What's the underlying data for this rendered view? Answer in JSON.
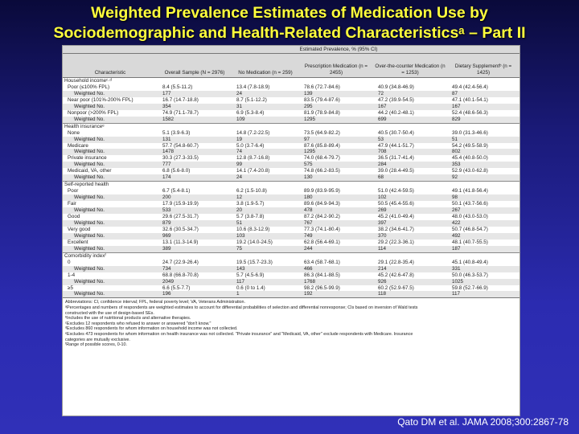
{
  "slide": {
    "title_line1": "Weighted Prevalence Estimates of Medication Use by",
    "title_line2": "Sociodemographic and Health-Related Characteristicsᵃ – Part II",
    "citation": "Qato DM et al. JAMA 2008;300:2867-78"
  },
  "table": {
    "estimated_header": "Estimated Prevalence, % (95% CI)",
    "columns": [
      "Characteristic",
      "Overall Sample (N = 2976)",
      "No Medication (n = 259)",
      "Prescription Medication (n = 2455)",
      "Over-the-counter Medication (n = 1253)",
      "Dietary Supplementᵇ (n = 1425)"
    ],
    "rows": [
      {
        "type": "section",
        "label": "Household incomeᶜ·ᵈ"
      },
      {
        "type": "sub",
        "label": "Poor (≤100% FPL)",
        "values": [
          "8.4 (5.5-11.2)",
          "13.4 (7.8-18.9)",
          "78.6 (72.7-84.6)",
          "40.9 (34.8-46.9)",
          "49.4 (42.4-56.4)"
        ]
      },
      {
        "type": "wn",
        "label": "Weighted No.",
        "values": [
          "177",
          "24",
          "139",
          "72",
          "87"
        ]
      },
      {
        "type": "sub",
        "label": "Near poor (101%-200% FPL)",
        "values": [
          "16.7 (14.7-18.8)",
          "8.7 (5.1-12.2)",
          "83.5 (79.4-87.6)",
          "47.2 (39.9-54.5)",
          "47.1 (40.1-54.1)"
        ]
      },
      {
        "type": "wn",
        "label": "Weighted No.",
        "values": [
          "354",
          "31",
          "295",
          "167",
          "167"
        ]
      },
      {
        "type": "sub",
        "label": "Nonpoor (>200% FPL)",
        "values": [
          "74.9 (71.1-78.7)",
          "6.9 (5.3-8.4)",
          "81.9 (78.9-84.8)",
          "44.2 (40.2-48.1)",
          "52.4 (48.6-56.3)"
        ]
      },
      {
        "type": "wn",
        "label": "Weighted No.",
        "values": [
          "1582",
          "109",
          "1295",
          "699",
          "829"
        ]
      },
      {
        "type": "section",
        "label": "Health insuranceᵉ"
      },
      {
        "type": "sub",
        "label": "None",
        "values": [
          "5.1 (3.9-6.3)",
          "14.8 (7.2-22.5)",
          "73.5 (64.9-82.2)",
          "40.5 (30.7-50.4)",
          "39.0 (31.3-46.6)"
        ]
      },
      {
        "type": "wn",
        "label": "Weighted No.",
        "values": [
          "131",
          "19",
          "97",
          "53",
          "51"
        ]
      },
      {
        "type": "sub",
        "label": "Medicare",
        "values": [
          "57.7 (54.8-60.7)",
          "5.0 (3.7-6.4)",
          "87.6 (85.8-89.4)",
          "47.9 (44.1-51.7)",
          "54.2 (49.5-58.9)"
        ]
      },
      {
        "type": "wn",
        "label": "Weighted No.",
        "values": [
          "1478",
          "74",
          "1295",
          "708",
          "802"
        ]
      },
      {
        "type": "sub",
        "label": "Private insurance",
        "values": [
          "30.3 (27.3-33.5)",
          "12.8 (8.7-16.8)",
          "74.0 (68.4-79.7)",
          "36.5 (31.7-41.4)",
          "45.4 (40.8-50.0)"
        ]
      },
      {
        "type": "wn",
        "label": "Weighted No.",
        "values": [
          "777",
          "99",
          "575",
          "284",
          "353"
        ]
      },
      {
        "type": "sub",
        "label": "Medicaid, VA, other",
        "values": [
          "6.8 (5.6-8.0)",
          "14.1 (7.4-20.8)",
          "74.8 (66.2-83.5)",
          "39.0 (28.4-49.5)",
          "52.9 (43.0-62.8)"
        ]
      },
      {
        "type": "wn",
        "label": "Weighted No.",
        "values": [
          "174",
          "24",
          "130",
          "68",
          "92"
        ]
      },
      {
        "type": "section",
        "label": "Self-reported health"
      },
      {
        "type": "sub",
        "label": "Poor",
        "values": [
          "6.7 (5.4-8.1)",
          "6.2 (1.5-10.8)",
          "89.9 (83.9-95.9)",
          "51.0 (42.4-59.5)",
          "49.1 (41.8-56.4)"
        ]
      },
      {
        "type": "wn",
        "label": "Weighted No.",
        "values": [
          "200",
          "12",
          "180",
          "102",
          "98"
        ]
      },
      {
        "type": "sub",
        "label": "Fair",
        "values": [
          "17.9 (15.9-19.9)",
          "3.8 (1.9-5.7)",
          "89.6 (84.9-94.3)",
          "50.5 (45.4-55.6)",
          "50.1 (43.7-56.6)"
        ]
      },
      {
        "type": "wn",
        "label": "Weighted No.",
        "values": [
          "533",
          "20",
          "478",
          "269",
          "267"
        ]
      },
      {
        "type": "sub",
        "label": "Good",
        "values": [
          "29.6 (27.5-31.7)",
          "5.7 (3.8-7.8)",
          "87.2 (84.2-90.2)",
          "45.2 (41.0-49.4)",
          "48.0 (43.0-53.0)"
        ]
      },
      {
        "type": "wn",
        "label": "Weighted No.",
        "values": [
          "879",
          "51",
          "767",
          "397",
          "422"
        ]
      },
      {
        "type": "sub",
        "label": "Very good",
        "values": [
          "32.6 (30.5-34.7)",
          "10.6 (8.3-12.9)",
          "77.3 (74.1-80.4)",
          "38.2 (34.6-41.7)",
          "50.7 (46.8-54.7)"
        ]
      },
      {
        "type": "wn",
        "label": "Weighted No.",
        "values": [
          "969",
          "103",
          "749",
          "370",
          "492"
        ]
      },
      {
        "type": "sub",
        "label": "Excellent",
        "values": [
          "13.1 (11.3-14.9)",
          "19.2 (14.0-24.5)",
          "62.8 (56.4-69.1)",
          "29.2 (22.3-36.1)",
          "48.1 (40.7-55.5)"
        ]
      },
      {
        "type": "wn",
        "label": "Weighted No.",
        "values": [
          "389",
          "75",
          "244",
          "114",
          "187"
        ]
      },
      {
        "type": "section",
        "label": "Comorbidity indexᶠ"
      },
      {
        "type": "sub",
        "label": "0",
        "values": [
          "24.7 (22.9-26.4)",
          "19.5 (15.7-23.3)",
          "63.4 (58.7-68.1)",
          "29.1 (22.8-35.4)",
          "45.1 (40.8-49.4)"
        ]
      },
      {
        "type": "wn",
        "label": "Weighted No.",
        "values": [
          "734",
          "143",
          "466",
          "214",
          "331"
        ]
      },
      {
        "type": "sub",
        "label": "1-4",
        "values": [
          "68.8 (66.8-70.8)",
          "5.7 (4.5-6.9)",
          "86.3 (84.1-88.5)",
          "45.2 (42.6-47.8)",
          "50.0 (46.3-53.7)"
        ]
      },
      {
        "type": "wn",
        "label": "Weighted No.",
        "values": [
          "2049",
          "117",
          "1768",
          "926",
          "1025"
        ]
      },
      {
        "type": "sub",
        "label": "≥5",
        "values": [
          "6.6 (5.5-7.7)",
          "0.6 (0 to 1.4)",
          "98.2 (96.5-99.9)",
          "60.2 (52.9-67.5)",
          "59.8 (52.7-66.9)"
        ]
      },
      {
        "type": "wn",
        "label": "Weighted No.",
        "values": [
          "196",
          "1",
          "192",
          "118",
          "117"
        ]
      }
    ],
    "notes": [
      "Abbreviations: CI, confidence interval; FPL, federal poverty level; VA, Veterans Administration.",
      "ᵃPercentages and numbers of respondents are weighted estimates to account for differential probabilities of selection and differential nonresponse; CIs based on inversion of Wald tests",
      "   constructed with the use of design-based SEs.",
      "ᵇIncludes the use of nutritional products and alternative therapies.",
      "ᶜExcludes 12 respondents who refused to answer or answered \"don't know.\"",
      "ᵈExcludes 860 respondents for whom information on household income was not collected.",
      "ᵉExcludes 473 respondents for whom information on health insurance was not collected. \"Private insurance\" and \"Medicaid, VA, other\" exclude respondents with Medicare. Insurance",
      "   categories are mutually exclusive.",
      "ᶠRange of possible scores, 0-10."
    ]
  }
}
